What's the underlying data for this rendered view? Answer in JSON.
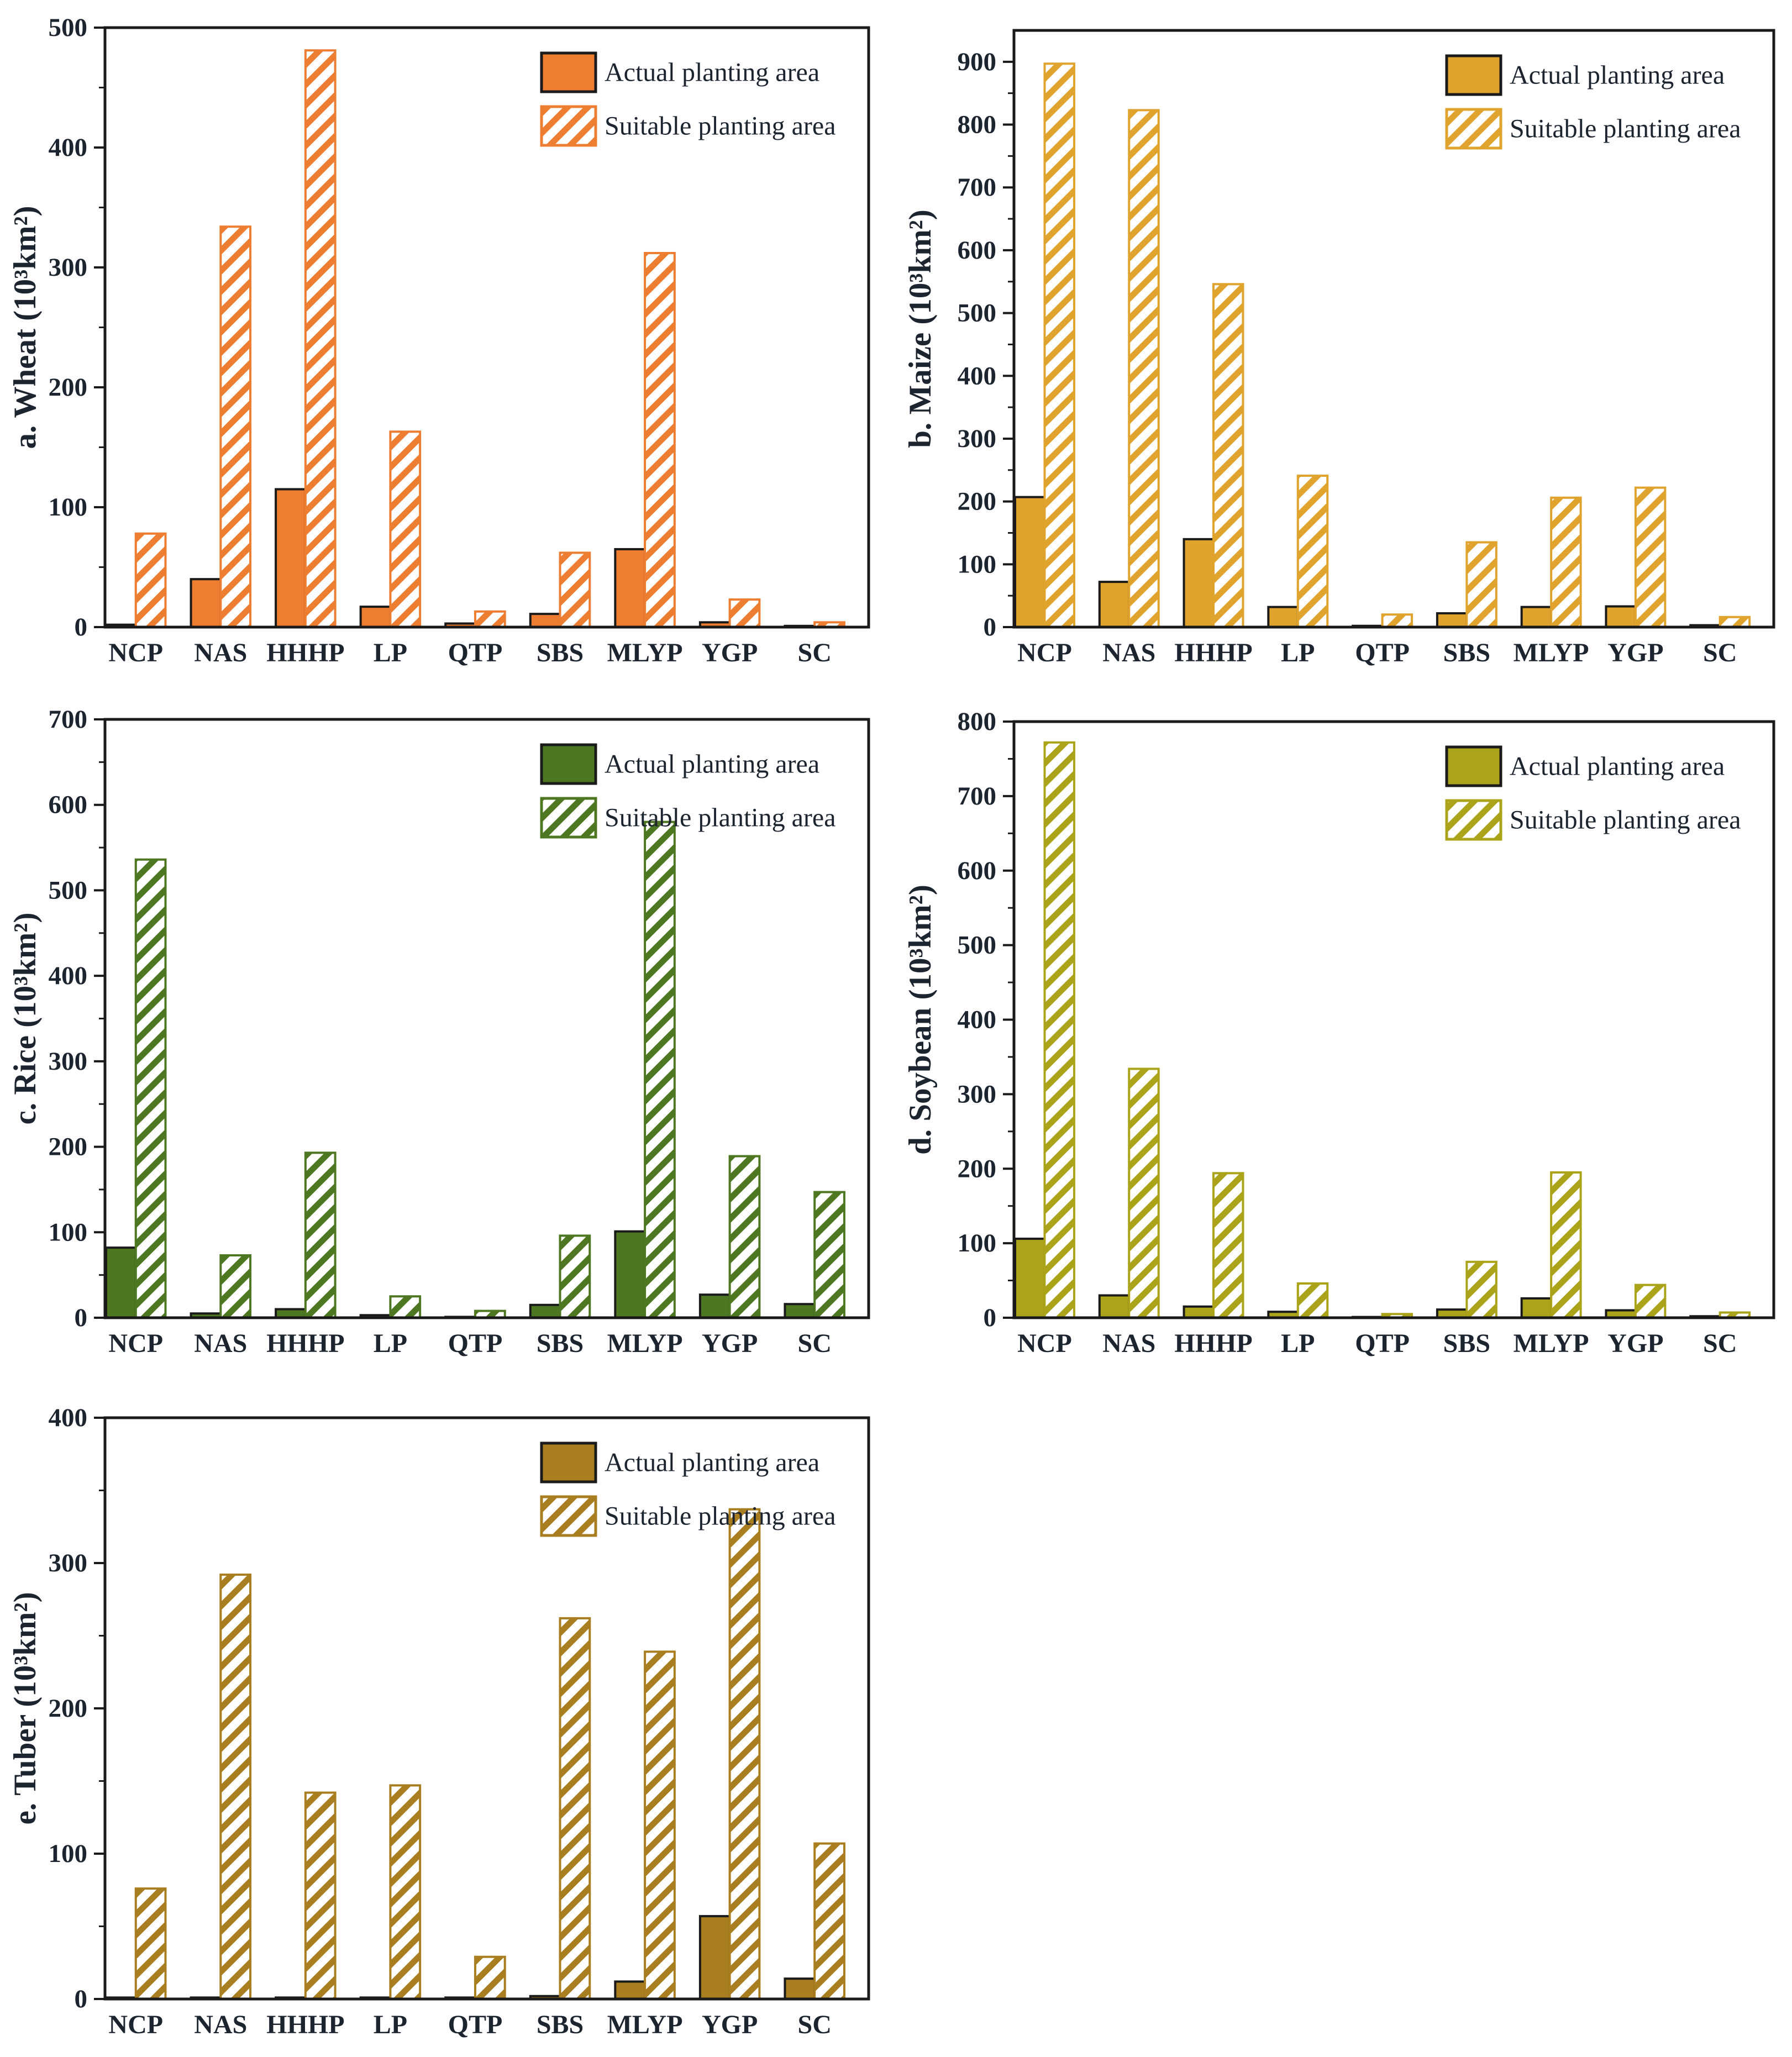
{
  "page": {
    "background": "#ffffff"
  },
  "style": {
    "axis_color": "#1a1a1a",
    "text_color": "#1c2430",
    "background": "#ffffff"
  },
  "legend": {
    "actual_label": "Actual planting area",
    "suitable_label": "Suitable planting area"
  },
  "categories": [
    "NCP",
    "NAS",
    "HHHP",
    "LP",
    "QTP",
    "SBS",
    "MLYP",
    "YGP",
    "SC"
  ],
  "chart_data": [
    {
      "type": "bar",
      "id": "wheat",
      "ylabel": "a. Wheat (10³km²)",
      "color": "#ED7D31",
      "ylim": [
        0,
        500
      ],
      "ytick_step": 100,
      "ytick_max": 500,
      "grid": false,
      "legend_position": "top-right",
      "categories": [
        "NCP",
        "NAS",
        "HHHP",
        "LP",
        "QTP",
        "SBS",
        "MLYP",
        "YGP",
        "SC"
      ],
      "series": [
        {
          "name": "Actual planting area",
          "values": [
            2,
            40,
            115,
            17,
            3,
            11,
            65,
            4,
            1
          ]
        },
        {
          "name": "Suitable planting area",
          "values": [
            78,
            334,
            481,
            163,
            13,
            62,
            312,
            23,
            4
          ]
        }
      ]
    },
    {
      "type": "bar",
      "id": "maize",
      "ylabel": "b. Maize (10³km²)",
      "color": "#E0A42E",
      "ylim": [
        0,
        950
      ],
      "ytick_step": 100,
      "ytick_max": 900,
      "grid": false,
      "legend_position": "top-right",
      "categories": [
        "NCP",
        "NAS",
        "HHHP",
        "LP",
        "QTP",
        "SBS",
        "MLYP",
        "YGP",
        "SC"
      ],
      "series": [
        {
          "name": "Actual planting area",
          "values": [
            207,
            72,
            140,
            32,
            2,
            22,
            32,
            33,
            3
          ]
        },
        {
          "name": "Suitable planting area",
          "values": [
            897,
            823,
            546,
            241,
            20,
            135,
            206,
            222,
            16
          ]
        }
      ]
    },
    {
      "type": "bar",
      "id": "rice",
      "ylabel": "c. Rice (10³km²)",
      "color": "#4E7722",
      "ylim": [
        0,
        700
      ],
      "ytick_step": 100,
      "ytick_max": 700,
      "grid": false,
      "legend_position": "top-right",
      "categories": [
        "NCP",
        "NAS",
        "HHHP",
        "LP",
        "QTP",
        "SBS",
        "MLYP",
        "YGP",
        "SC"
      ],
      "series": [
        {
          "name": "Actual planting area",
          "values": [
            82,
            5,
            10,
            3,
            1,
            15,
            101,
            27,
            16
          ]
        },
        {
          "name": "Suitable planting area",
          "values": [
            536,
            73,
            193,
            25,
            8,
            96,
            580,
            189,
            147
          ]
        }
      ]
    },
    {
      "type": "bar",
      "id": "soybean",
      "ylabel": "d. Soybean (10³km²)",
      "color": "#ABA41A",
      "ylim": [
        0,
        800
      ],
      "ytick_step": 100,
      "ytick_max": 800,
      "grid": false,
      "legend_position": "top-right",
      "categories": [
        "NCP",
        "NAS",
        "HHHP",
        "LP",
        "QTP",
        "SBS",
        "MLYP",
        "YGP",
        "SC"
      ],
      "series": [
        {
          "name": "Actual planting area",
          "values": [
            106,
            30,
            15,
            8,
            1,
            11,
            26,
            10,
            2
          ]
        },
        {
          "name": "Suitable planting area",
          "values": [
            772,
            334,
            194,
            46,
            5,
            75,
            195,
            44,
            7
          ]
        }
      ]
    },
    {
      "type": "bar",
      "id": "tuber",
      "ylabel": "e. Tuber (10³km²)",
      "color": "#A97E20",
      "ylim": [
        0,
        400
      ],
      "ytick_step": 100,
      "ytick_max": 400,
      "grid": false,
      "legend_position": "top-right",
      "categories": [
        "NCP",
        "NAS",
        "HHHP",
        "LP",
        "QTP",
        "SBS",
        "MLYP",
        "YGP",
        "SC"
      ],
      "series": [
        {
          "name": "Actual planting area",
          "values": [
            1,
            1,
            1,
            1,
            1,
            2,
            12,
            57,
            14
          ]
        },
        {
          "name": "Suitable planting area",
          "values": [
            76,
            292,
            142,
            147,
            29,
            262,
            239,
            337,
            107
          ]
        }
      ]
    }
  ]
}
